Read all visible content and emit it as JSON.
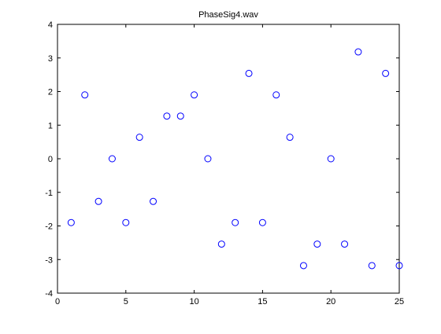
{
  "window": {
    "title": "PhaseSig4.wav"
  },
  "chart_data": {
    "type": "scatter",
    "title": "PhaseSig4.wav",
    "xlabel": "",
    "ylabel": "",
    "xlim": [
      0,
      25
    ],
    "ylim": [
      -4,
      4
    ],
    "xticks": [
      "0",
      "5",
      "10",
      "15",
      "20",
      "25"
    ],
    "yticks": [
      "-4",
      "-3",
      "-2",
      "-1",
      "0",
      "1",
      "2",
      "3",
      "4"
    ],
    "grid": false,
    "legend": "none",
    "marker": "circle-open",
    "marker_color": "#0000ff",
    "series": [
      {
        "x": [
          1,
          2,
          3,
          4,
          5,
          6,
          7,
          8,
          9,
          10,
          11,
          12,
          13,
          14,
          15,
          16,
          17,
          18,
          19,
          20,
          21,
          22,
          23,
          24,
          25
        ],
        "y": [
          -1.9,
          1.9,
          -1.27,
          0,
          -1.9,
          0.64,
          -1.27,
          1.27,
          1.27,
          1.9,
          0,
          -2.54,
          -1.9,
          2.54,
          -1.9,
          1.9,
          0.64,
          -3.18,
          -2.54,
          0,
          -2.54,
          3.18,
          -3.18,
          2.54,
          -3.18
        ]
      }
    ]
  }
}
